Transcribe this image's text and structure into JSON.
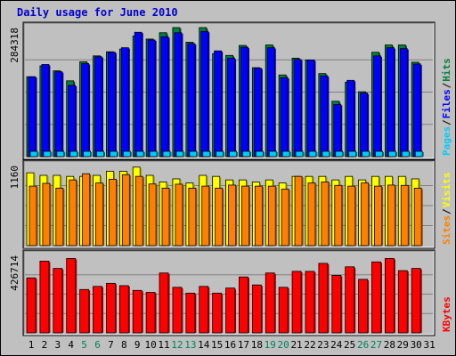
{
  "title": "Daily usage for June 2010",
  "chart_data": [
    {
      "type": "bar",
      "panel": "hits-files-pages",
      "ylabel_max": "284318",
      "legend": [
        "Pages",
        "/",
        "Files",
        "/",
        "Hits"
      ],
      "ylim": [
        0,
        284318
      ],
      "categories": [
        "1",
        "2",
        "3",
        "4",
        "5",
        "6",
        "7",
        "8",
        "9",
        "10",
        "11",
        "12",
        "13",
        "14",
        "15",
        "16",
        "17",
        "18",
        "19",
        "20",
        "21",
        "22",
        "23",
        "24",
        "25",
        "26",
        "27",
        "28",
        "29",
        "30",
        "31"
      ],
      "series": [
        {
          "name": "Hits",
          "color": "#008040",
          "values": [
            176000,
            200000,
            189000,
            167000,
            209000,
            222000,
            231000,
            237000,
            266000,
            259000,
            273000,
            284318,
            252000,
            284318,
            227000,
            223000,
            245000,
            196000,
            246000,
            180000,
            217000,
            213000,
            183000,
            122000,
            164000,
            143000,
            230000,
            246000,
            246000,
            208000,
            0
          ]
        },
        {
          "name": "Files",
          "color": "#0000ff",
          "values": [
            176000,
            203000,
            187000,
            157000,
            205000,
            220000,
            230000,
            240000,
            274000,
            257000,
            264000,
            273000,
            249000,
            276000,
            233000,
            217000,
            241000,
            195000,
            240000,
            174000,
            214000,
            213000,
            178000,
            115000,
            168000,
            140000,
            222000,
            240000,
            238000,
            204000,
            0
          ]
        },
        {
          "name": "Pages",
          "color": "#00ccff",
          "values": [
            16000,
            16000,
            16000,
            16000,
            13000,
            11000,
            11000,
            13000,
            13000,
            16000,
            16000,
            16000,
            13000,
            13000,
            13000,
            13000,
            16000,
            16000,
            16000,
            16000,
            13000,
            13000,
            19000,
            16000,
            13000,
            13000,
            13000,
            13000,
            13000,
            13000,
            0
          ]
        }
      ]
    },
    {
      "type": "bar",
      "panel": "visits-sites",
      "ylabel_max": "1160",
      "legend": [
        "Sites",
        "/",
        "Visits"
      ],
      "ylim": [
        0,
        1160
      ],
      "categories": [
        "1",
        "2",
        "3",
        "4",
        "5",
        "6",
        "7",
        "8",
        "9",
        "10",
        "11",
        "12",
        "13",
        "14",
        "15",
        "16",
        "17",
        "18",
        "19",
        "20",
        "21",
        "22",
        "23",
        "24",
        "25",
        "26",
        "27",
        "28",
        "29",
        "30",
        "31"
      ],
      "series": [
        {
          "name": "Visits",
          "color": "#ffff00",
          "values": [
            1055,
            1018,
            1018,
            1003,
            1003,
            1018,
            1078,
            1078,
            1137,
            1018,
            922,
            967,
            907,
            1018,
            1003,
            952,
            952,
            922,
            952,
            907,
            1003,
            1003,
            1003,
            952,
            1003,
            952,
            1003,
            1003,
            1003,
            967,
            0
          ]
        },
        {
          "name": "Sites",
          "color": "#ff8000",
          "values": [
            862,
            902,
            833,
            952,
            1041,
            907,
            962,
            1028,
            1003,
            893,
            833,
            890,
            833,
            862,
            833,
            877,
            862,
            862,
            862,
            819,
            1003,
            907,
            922,
            873,
            862,
            907,
            862,
            877,
            873,
            833,
            0
          ]
        }
      ]
    },
    {
      "type": "bar",
      "panel": "kbytes",
      "ylabel_max": "426714",
      "legend": [
        "KBytes"
      ],
      "ylim": [
        0,
        426714
      ],
      "categories": [
        "1",
        "2",
        "3",
        "4",
        "5",
        "6",
        "7",
        "8",
        "9",
        "10",
        "11",
        "12",
        "13",
        "14",
        "15",
        "16",
        "17",
        "18",
        "19",
        "20",
        "21",
        "22",
        "23",
        "24",
        "25",
        "26",
        "27",
        "28",
        "29",
        "30",
        "31"
      ],
      "series": [
        {
          "name": "KBytes",
          "color": "#ff0000",
          "values": [
            303000,
            395000,
            355000,
            410000,
            239000,
            256000,
            273000,
            260000,
            234000,
            223000,
            330000,
            251000,
            219000,
            256000,
            219000,
            247000,
            308000,
            264000,
            330000,
            251000,
            339000,
            339000,
            383000,
            317000,
            364000,
            295000,
            391000,
            410000,
            343000,
            355000,
            0
          ]
        }
      ]
    }
  ],
  "x_labels": [
    {
      "d": "1",
      "c": "#000000"
    },
    {
      "d": "2",
      "c": "#000000"
    },
    {
      "d": "3",
      "c": "#000000"
    },
    {
      "d": "4",
      "c": "#000000"
    },
    {
      "d": "5",
      "c": "#00805c"
    },
    {
      "d": "6",
      "c": "#00805c"
    },
    {
      "d": "7",
      "c": "#000000"
    },
    {
      "d": "8",
      "c": "#000000"
    },
    {
      "d": "9",
      "c": "#000000"
    },
    {
      "d": "10",
      "c": "#000000"
    },
    {
      "d": "11",
      "c": "#000000"
    },
    {
      "d": "12",
      "c": "#00805c"
    },
    {
      "d": "13",
      "c": "#00805c"
    },
    {
      "d": "14",
      "c": "#000000"
    },
    {
      "d": "15",
      "c": "#000000"
    },
    {
      "d": "16",
      "c": "#000000"
    },
    {
      "d": "17",
      "c": "#000000"
    },
    {
      "d": "18",
      "c": "#000000"
    },
    {
      "d": "19",
      "c": "#00805c"
    },
    {
      "d": "20",
      "c": "#00805c"
    },
    {
      "d": "21",
      "c": "#000000"
    },
    {
      "d": "22",
      "c": "#000000"
    },
    {
      "d": "23",
      "c": "#000000"
    },
    {
      "d": "24",
      "c": "#000000"
    },
    {
      "d": "25",
      "c": "#000000"
    },
    {
      "d": "26",
      "c": "#00805c"
    },
    {
      "d": "27",
      "c": "#00805c"
    },
    {
      "d": "28",
      "c": "#000000"
    },
    {
      "d": "29",
      "c": "#000000"
    },
    {
      "d": "30",
      "c": "#000000"
    },
    {
      "d": "31",
      "c": "#000000"
    }
  ],
  "legend_colors": {
    "Pages": "#00ccff",
    "Files": "#0000ff",
    "Hits": "#008040",
    "Sites": "#ff8000",
    "Visits": "#ffff00",
    "KBytes": "#ff0000",
    "sep": "#000000"
  }
}
